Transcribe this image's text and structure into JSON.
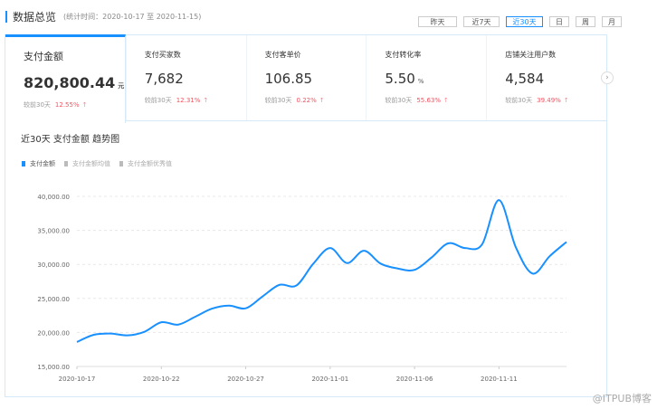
{
  "header": {
    "title": "数据总览",
    "subtitle": "(统计时间：2020-10-17 至 2020-11-15)"
  },
  "range_buttons": [
    {
      "label": "昨天",
      "active": false
    },
    {
      "label": "近7天",
      "active": false
    },
    {
      "label": "近30天",
      "active": true
    },
    {
      "label": "日",
      "active": false
    },
    {
      "label": "周",
      "active": false
    },
    {
      "label": "月",
      "active": false
    }
  ],
  "cards": [
    {
      "label": "支付金额",
      "value": "820,800.44",
      "unit": "元",
      "compare": "较前30天",
      "change": "12.55%",
      "selected": true
    },
    {
      "label": "支付买家数",
      "value": "7,682",
      "unit": "",
      "compare": "较前30天",
      "change": "12.31%"
    },
    {
      "label": "支付客单价",
      "value": "106.85",
      "unit": "",
      "compare": "较前30天",
      "change": "0.22%"
    },
    {
      "label": "支付转化率",
      "value": "5.50",
      "unit": "%",
      "compare": "较前30天",
      "change": "55.63%"
    },
    {
      "label": "店铺关注用户数",
      "value": "4,584",
      "unit": "",
      "compare": "较前30天",
      "change": "39.49%"
    }
  ],
  "icons": {
    "up": "arrow-up-icon",
    "next": "chevron-right-icon"
  },
  "colors": {
    "accent": "#1890ff",
    "up": "#f5515f"
  },
  "chart_title": "近30天 支付金额 趋势图",
  "legend": [
    {
      "label": "支付金额",
      "active": true
    },
    {
      "label": "支付金额均值",
      "active": false
    },
    {
      "label": "支付金额优秀值",
      "active": false
    }
  ],
  "chart_data": {
    "type": "line",
    "x": [
      "2020-10-17",
      "2020-10-18",
      "2020-10-19",
      "2020-10-20",
      "2020-10-21",
      "2020-10-22",
      "2020-10-23",
      "2020-10-24",
      "2020-10-25",
      "2020-10-26",
      "2020-10-27",
      "2020-10-28",
      "2020-10-29",
      "2020-10-30",
      "2020-10-31",
      "2020-11-01",
      "2020-11-02",
      "2020-11-03",
      "2020-11-04",
      "2020-11-05",
      "2020-11-06",
      "2020-11-07",
      "2020-11-08",
      "2020-11-09",
      "2020-11-10",
      "2020-11-11",
      "2020-11-12",
      "2020-11-13",
      "2020-11-14",
      "2020-11-15"
    ],
    "series": [
      {
        "name": "支付金额",
        "color": "#1890ff",
        "values": [
          18600,
          19650,
          19830,
          19570,
          20100,
          21500,
          21150,
          22300,
          23500,
          23950,
          23550,
          25300,
          27000,
          26900,
          30100,
          32400,
          30200,
          32000,
          30100,
          29400,
          29200,
          31000,
          33100,
          32400,
          32950,
          39450,
          32500,
          28650,
          31200,
          33300
        ]
      }
    ],
    "ylim": [
      15000,
      40000
    ],
    "yticks": [
      "15,000.00",
      "20,000.00",
      "25,000.00",
      "30,000.00",
      "35,000.00",
      "40,000.00"
    ],
    "xticks": [
      "2020-10-17",
      "2020-10-22",
      "2020-10-27",
      "2020-11-01",
      "2020-11-06",
      "2020-11-11"
    ],
    "grid": true,
    "smooth": true,
    "legend": "top-left"
  },
  "watermark": "@ITPUB博客"
}
